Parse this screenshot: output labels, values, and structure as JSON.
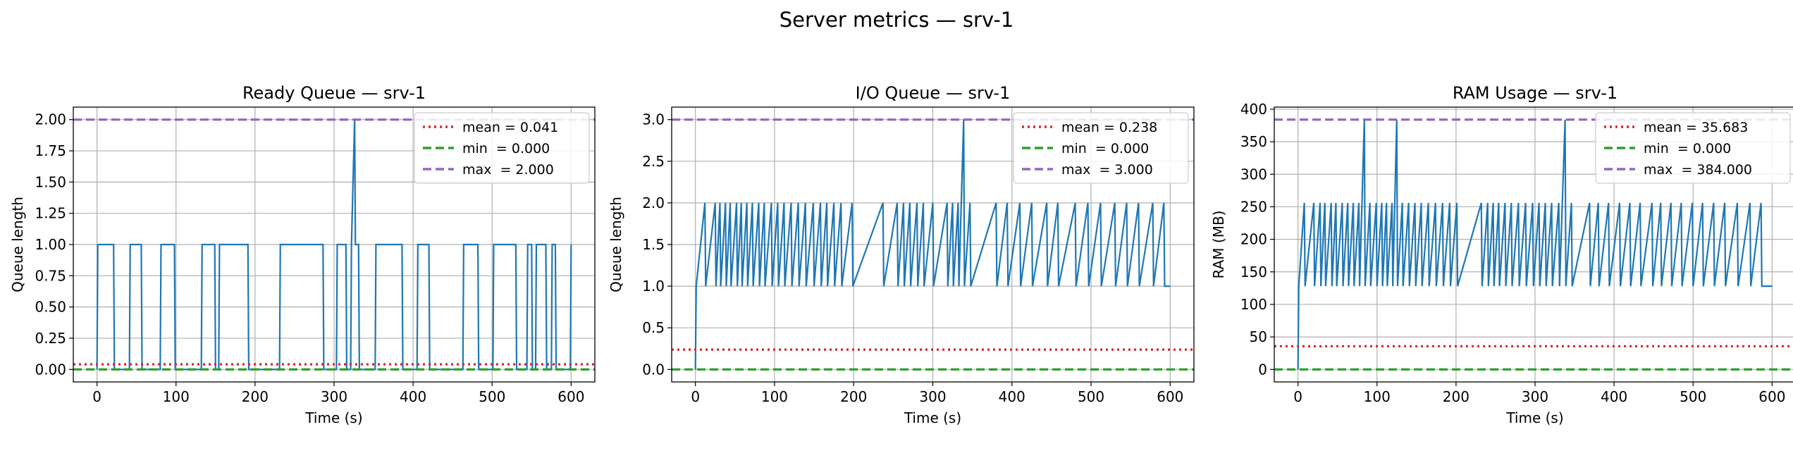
{
  "figure": {
    "title": "Server metrics — srv-1"
  },
  "chart_data": [
    {
      "type": "line",
      "title": "Ready Queue — srv-1",
      "xlabel": "Time (s)",
      "ylabel": "Queue length",
      "xlim": [
        -30,
        630
      ],
      "ylim": [
        -0.1,
        2.1
      ],
      "xticks": [
        0,
        100,
        200,
        300,
        400,
        500,
        600
      ],
      "xtick_labels": [
        "0",
        "100",
        "200",
        "300",
        "400",
        "500",
        "600"
      ],
      "yticks": [
        0,
        0.25,
        0.5,
        0.75,
        1.0,
        1.25,
        1.5,
        1.75,
        2.0
      ],
      "ytick_labels": [
        "0.00",
        "0.25",
        "0.50",
        "0.75",
        "1.00",
        "1.25",
        "1.50",
        "1.75",
        "2.00"
      ],
      "grid": true,
      "legend_position": "upper-right",
      "series": [
        {
          "color": "#1f77b4",
          "x": [
            0,
            1,
            21,
            22,
            41,
            42,
            56,
            57,
            80,
            81,
            98,
            99,
            132,
            133,
            149,
            150,
            154,
            155,
            191,
            192,
            231,
            232,
            286,
            287,
            303,
            304,
            315,
            316,
            321,
            322,
            326,
            327,
            331,
            332,
            352,
            353,
            386,
            387,
            405,
            406,
            420,
            421,
            463,
            464,
            482,
            483,
            501,
            502,
            530,
            531,
            544,
            545,
            550,
            551,
            555,
            556,
            568,
            569,
            575,
            576,
            580,
            581,
            599,
            600
          ],
          "y": [
            0,
            1,
            1,
            0,
            0,
            1,
            1,
            0,
            0,
            1,
            1,
            0,
            0,
            1,
            1,
            0,
            0,
            1,
            1,
            0,
            0,
            1,
            1,
            0,
            0,
            1,
            1,
            0,
            0,
            1,
            2,
            1,
            1,
            0,
            0,
            1,
            1,
            0,
            0,
            1,
            1,
            0,
            0,
            1,
            1,
            0,
            0,
            1,
            1,
            0,
            0,
            1,
            1,
            0,
            0,
            1,
            1,
            0,
            0,
            1,
            1,
            0,
            0,
            1
          ]
        }
      ],
      "reference_lines": [
        {
          "label": "mean = 0.041",
          "value": 0.041,
          "style": "dotted",
          "color": "#d62728"
        },
        {
          "label": "min  = 0.000",
          "value": 0.0,
          "style": "dashed",
          "color": "#2ca02c"
        },
        {
          "label": "max  = 2.000",
          "value": 2.0,
          "style": "dashed",
          "color": "#9467bd"
        }
      ]
    },
    {
      "type": "line",
      "title": "I/O Queue — srv-1",
      "xlabel": "Time (s)",
      "ylabel": "Queue length",
      "xlim": [
        -30,
        630
      ],
      "ylim": [
        -0.15,
        3.15
      ],
      "xticks": [
        0,
        100,
        200,
        300,
        400,
        500,
        600
      ],
      "xtick_labels": [
        "0",
        "100",
        "200",
        "300",
        "400",
        "500",
        "600"
      ],
      "yticks": [
        0,
        0.5,
        1.0,
        1.5,
        2.0,
        2.5,
        3.0
      ],
      "ytick_labels": [
        "0.0",
        "0.5",
        "1.0",
        "1.5",
        "2.0",
        "2.5",
        "3.0"
      ],
      "grid": true,
      "legend_position": "upper-right",
      "series": [
        {
          "color": "#1f77b4",
          "x": [
            0,
            1,
            12,
            13,
            25,
            26,
            31,
            32,
            38,
            39,
            44,
            45,
            52,
            53,
            58,
            59,
            65,
            66,
            72,
            73,
            80,
            81,
            87,
            88,
            96,
            97,
            104,
            105,
            112,
            113,
            121,
            122,
            130,
            131,
            139,
            140,
            149,
            150,
            158,
            159,
            166,
            167,
            175,
            176,
            184,
            185,
            198,
            199,
            237,
            238,
            255,
            256,
            263,
            264,
            271,
            272,
            280,
            281,
            288,
            289,
            300,
            301,
            318,
            319,
            325,
            326,
            332,
            333,
            339,
            340,
            347,
            348,
            380,
            381,
            394,
            395,
            410,
            411,
            425,
            426,
            444,
            445,
            458,
            459,
            480,
            481,
            496,
            497,
            512,
            513,
            530,
            531,
            545,
            546,
            560,
            561,
            578,
            579,
            592,
            593,
            600
          ],
          "y": [
            0,
            1,
            2,
            1,
            2,
            1,
            2,
            1,
            2,
            1,
            2,
            1,
            2,
            1,
            2,
            1,
            2,
            1,
            2,
            1,
            2,
            1,
            2,
            1,
            2,
            1,
            2,
            1,
            2,
            1,
            2,
            1,
            2,
            1,
            2,
            1,
            2,
            1,
            2,
            1,
            2,
            1,
            2,
            1,
            2,
            1,
            2,
            1,
            2,
            1,
            2,
            1,
            2,
            1,
            2,
            1,
            2,
            1,
            2,
            1,
            2,
            1,
            2,
            1,
            2,
            1,
            2,
            1,
            3,
            1,
            2,
            1,
            2,
            1,
            2,
            1,
            2,
            1,
            2,
            1,
            2,
            1,
            2,
            1,
            2,
            1,
            2,
            1,
            2,
            1,
            2,
            1,
            2,
            1,
            2,
            1,
            2,
            1,
            2,
            1,
            1
          ]
        }
      ],
      "reference_lines": [
        {
          "label": "mean = 0.238",
          "value": 0.238,
          "style": "dotted",
          "color": "#d62728"
        },
        {
          "label": "min  = 0.000",
          "value": 0.0,
          "style": "dashed",
          "color": "#2ca02c"
        },
        {
          "label": "max  = 3.000",
          "value": 3.0,
          "style": "dashed",
          "color": "#9467bd"
        }
      ]
    },
    {
      "type": "line",
      "title": "RAM Usage — srv-1",
      "xlabel": "Time (s)",
      "ylabel": "RAM (MB)",
      "xlim": [
        -30,
        630
      ],
      "ylim": [
        -19.2,
        403.2
      ],
      "xticks": [
        0,
        100,
        200,
        300,
        400,
        500,
        600
      ],
      "xtick_labels": [
        "0",
        "100",
        "200",
        "300",
        "400",
        "500",
        "600"
      ],
      "yticks": [
        0,
        50,
        100,
        150,
        200,
        250,
        300,
        350,
        400
      ],
      "ytick_labels": [
        "0",
        "50",
        "100",
        "150",
        "200",
        "250",
        "300",
        "350",
        "400"
      ],
      "grid": true,
      "legend_position": "upper-right",
      "series": [
        {
          "color": "#1f77b4",
          "x": [
            0,
            1,
            8,
            9,
            20,
            21,
            28,
            29,
            34,
            35,
            42,
            43,
            48,
            49,
            56,
            57,
            63,
            64,
            70,
            71,
            77,
            78,
            84,
            85,
            91,
            92,
            99,
            100,
            106,
            107,
            112,
            113,
            119,
            120,
            125,
            126,
            132,
            133,
            140,
            141,
            148,
            149,
            156,
            157,
            165,
            166,
            174,
            175,
            183,
            184,
            192,
            193,
            201,
            202,
            232,
            233,
            240,
            241,
            247,
            248,
            254,
            255,
            262,
            263,
            270,
            271,
            279,
            280,
            288,
            289,
            297,
            298,
            305,
            306,
            313,
            314,
            321,
            322,
            330,
            331,
            338,
            339,
            346,
            347,
            369,
            370,
            380,
            381,
            393,
            394,
            407,
            408,
            420,
            421,
            433,
            434,
            448,
            449,
            459,
            460,
            472,
            473,
            485,
            486,
            499,
            500,
            512,
            513,
            526,
            527,
            540,
            541,
            556,
            557,
            572,
            573,
            586,
            587,
            600
          ],
          "y": [
            0,
            128,
            256,
            128,
            256,
            128,
            256,
            128,
            256,
            128,
            256,
            128,
            256,
            128,
            256,
            128,
            256,
            128,
            256,
            128,
            256,
            128,
            384,
            128,
            256,
            128,
            256,
            128,
            256,
            128,
            256,
            128,
            256,
            128,
            384,
            128,
            256,
            128,
            256,
            128,
            256,
            128,
            256,
            128,
            256,
            128,
            256,
            128,
            256,
            128,
            256,
            128,
            256,
            128,
            256,
            128,
            256,
            128,
            256,
            128,
            256,
            128,
            256,
            128,
            256,
            128,
            256,
            128,
            256,
            128,
            256,
            128,
            256,
            128,
            256,
            128,
            256,
            128,
            256,
            128,
            384,
            128,
            256,
            128,
            256,
            128,
            256,
            128,
            256,
            128,
            256,
            128,
            256,
            128,
            256,
            128,
            256,
            128,
            256,
            128,
            256,
            128,
            256,
            128,
            256,
            128,
            256,
            128,
            256,
            128,
            256,
            128,
            256,
            128,
            256,
            128,
            256,
            128,
            128
          ]
        }
      ],
      "reference_lines": [
        {
          "label": "mean = 35.683",
          "value": 35.683,
          "style": "dotted",
          "color": "#d62728"
        },
        {
          "label": "min  = 0.000",
          "value": 0.0,
          "style": "dashed",
          "color": "#2ca02c"
        },
        {
          "label": "max  = 384.000",
          "value": 384.0,
          "style": "dashed",
          "color": "#9467bd"
        }
      ]
    }
  ]
}
